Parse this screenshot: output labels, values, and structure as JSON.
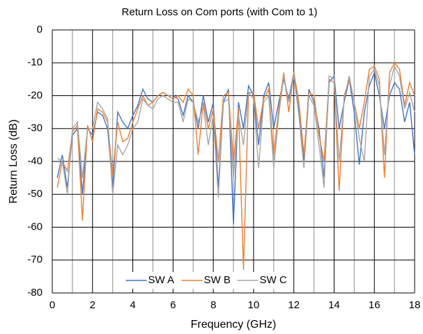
{
  "chart_data": {
    "type": "line",
    "title": "Return Loss on Com ports (with Com to 1)",
    "x_label": "Frequency (GHz)",
    "y_label": "Return Loss (dB)",
    "xlim": [
      0,
      18
    ],
    "ylim": [
      -80,
      0
    ],
    "xticks": [
      0,
      2,
      4,
      6,
      8,
      10,
      12,
      14,
      16,
      18
    ],
    "x_minor_ticks": [
      1,
      3,
      5,
      7,
      9,
      11,
      13,
      15,
      17
    ],
    "yticks": [
      0,
      -10,
      -20,
      -30,
      -40,
      -50,
      -60,
      -70,
      -80
    ],
    "grid": true,
    "legend": "bottom",
    "x": [
      0.25,
      0.5,
      0.75,
      1,
      1.25,
      1.5,
      1.75,
      2,
      2.25,
      2.5,
      2.75,
      3,
      3.25,
      3.5,
      3.75,
      4,
      4.25,
      4.5,
      4.75,
      5,
      5.25,
      5.5,
      5.75,
      6,
      6.25,
      6.5,
      6.75,
      7,
      7.25,
      7.5,
      7.75,
      8,
      8.25,
      8.5,
      8.75,
      9,
      9.25,
      9.5,
      9.75,
      10,
      10.25,
      10.5,
      10.75,
      11,
      11.25,
      11.5,
      11.75,
      12,
      12.25,
      12.5,
      12.75,
      13,
      13.25,
      13.5,
      13.75,
      14,
      14.25,
      14.5,
      14.75,
      15,
      15.25,
      15.5,
      15.75,
      16,
      16.25,
      16.5,
      16.75,
      17,
      17.25,
      17.5,
      17.75,
      18
    ],
    "series": [
      {
        "name": "SW A",
        "color": "#4472c4",
        "values": [
          -45,
          -38,
          -48,
          -32,
          -30,
          -50,
          -30,
          -32,
          -25,
          -26,
          -30,
          -48,
          -25,
          -28,
          -30,
          -26,
          -23,
          -18,
          -21,
          -22,
          -20,
          -19,
          -20,
          -20,
          -21,
          -26,
          -20,
          -22,
          -30,
          -20,
          -28,
          -22,
          -48,
          -22,
          -18,
          -59,
          -22,
          -30,
          -17,
          -20,
          -35,
          -20,
          -16,
          -30,
          -22,
          -15,
          -21,
          -13,
          -25,
          -40,
          -18,
          -22,
          -30,
          -45,
          -16,
          -14,
          -30,
          -22,
          -15,
          -25,
          -41,
          -25,
          -17,
          -13,
          -20,
          -30,
          -20,
          -16,
          -18,
          -28,
          -22,
          -38
        ]
      },
      {
        "name": "SW B",
        "color": "#ed7d31",
        "values": [
          -48,
          -40,
          -43,
          -31,
          -29,
          -58,
          -29,
          -34,
          -24,
          -25,
          -28,
          -44,
          -28,
          -34,
          -33,
          -28,
          -24,
          -20,
          -23,
          -22,
          -20,
          -19,
          -20,
          -21,
          -20,
          -22,
          -18,
          -20,
          -38,
          -22,
          -30,
          -24,
          -40,
          -20,
          -19,
          -40,
          -24,
          -73,
          -19,
          -19,
          -30,
          -21,
          -18,
          -38,
          -24,
          -13,
          -25,
          -13,
          -22,
          -38,
          -19,
          -20,
          -32,
          -40,
          -15,
          -16,
          -49,
          -20,
          -15,
          -22,
          -30,
          -22,
          -12,
          -11,
          -15,
          -45,
          -13,
          -10,
          -12,
          -23,
          -16,
          -20
        ]
      },
      {
        "name": "SW C",
        "color": "#a5a5a5",
        "values": [
          -39,
          -40,
          -50,
          -30,
          -28,
          -45,
          -30,
          -30,
          -22,
          -24,
          -27,
          -50,
          -35,
          -38,
          -35,
          -30,
          -28,
          -21,
          -23,
          -24,
          -21,
          -20,
          -21,
          -22,
          -22,
          -28,
          -21,
          -22,
          -28,
          -23,
          -35,
          -26,
          -51,
          -22,
          -21,
          -45,
          -26,
          -35,
          -19,
          -21,
          -42,
          -22,
          -20,
          -42,
          -26,
          -14,
          -22,
          -14,
          -26,
          -42,
          -20,
          -23,
          -35,
          -48,
          -14,
          -15,
          -40,
          -21,
          -14,
          -22,
          -33,
          -40,
          -14,
          -12,
          -17,
          -38,
          -17,
          -11,
          -14,
          -24,
          -19,
          -25
        ]
      }
    ]
  }
}
